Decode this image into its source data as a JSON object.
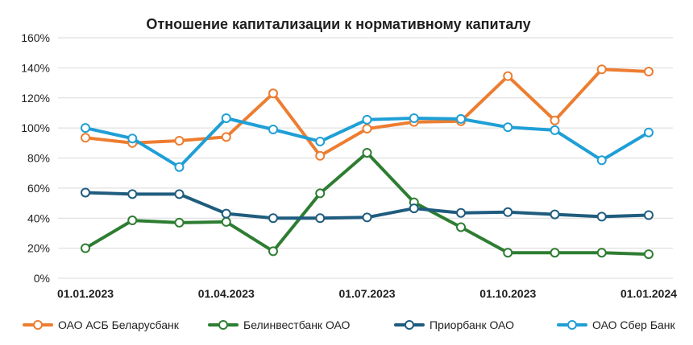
{
  "chart_data": {
    "type": "line",
    "title": "Отношение капитализации к нормативному капиталу",
    "xlabel": "",
    "ylabel": "",
    "ylim": [
      0,
      160
    ],
    "yticks": [
      "0%",
      "20%",
      "40%",
      "60%",
      "80%",
      "100%",
      "120%",
      "140%",
      "160%"
    ],
    "x_tick_labels": [
      {
        "index": 0,
        "label": "01.01.2023"
      },
      {
        "index": 3,
        "label": "01.04.2023"
      },
      {
        "index": 6,
        "label": "01.07.2023"
      },
      {
        "index": 9,
        "label": "01.10.2023"
      },
      {
        "index": 12,
        "label": "01.01.2024"
      }
    ],
    "grid": true,
    "legend_position": "bottom",
    "series": [
      {
        "name": "ОАО АСБ Беларусбанк",
        "color": "#ED7D31",
        "values": [
          93.5,
          90,
          91.5,
          94,
          123,
          81.5,
          99.5,
          104,
          104.5,
          134.5,
          105,
          139,
          137.5
        ]
      },
      {
        "name": "Белинвестбанк ОАО",
        "color": "#2E7D32",
        "values": [
          20,
          38.5,
          37,
          37.5,
          18,
          56.5,
          83.5,
          50.5,
          34,
          17,
          17,
          17,
          16
        ]
      },
      {
        "name": "Приорбанк ОАО",
        "color": "#1F5C7E",
        "values": [
          57,
          56,
          56,
          43,
          40,
          40,
          40.5,
          46.5,
          43.5,
          44,
          42.5,
          41,
          42
        ]
      },
      {
        "name": "ОАО Сбер Банк",
        "color": "#1F9FD6",
        "values": [
          100,
          93,
          74,
          106.5,
          99,
          91,
          105.5,
          106.5,
          106,
          100.5,
          98.5,
          78.5,
          97
        ]
      }
    ]
  }
}
